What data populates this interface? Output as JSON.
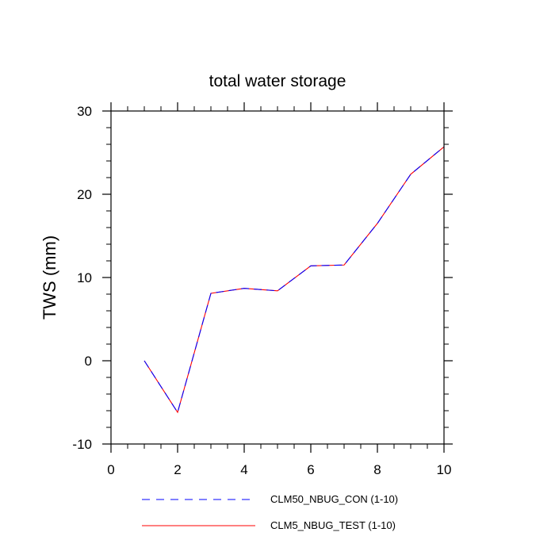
{
  "chart_data": {
    "type": "line",
    "title": "total water storage",
    "xlabel": "",
    "ylabel": "TWS  (mm)",
    "xlim": [
      0,
      10
    ],
    "ylim": [
      -10,
      30
    ],
    "x_ticks": [
      0,
      2,
      4,
      6,
      8,
      10
    ],
    "y_ticks": [
      -10,
      0,
      10,
      20,
      30
    ],
    "x_minor_step": 0.5,
    "y_minor_step": 2,
    "grid": false,
    "legend_position": "bottom",
    "x": [
      1,
      2,
      3,
      4,
      5,
      6,
      7,
      8,
      9,
      10
    ],
    "series": [
      {
        "name": "CLM50_NBUG_CON (1-10)",
        "values": [
          0.0,
          -6.2,
          8.1,
          8.7,
          8.4,
          11.4,
          11.5,
          16.5,
          22.4,
          25.7
        ],
        "color": "#0000ff",
        "dash": "dashed"
      },
      {
        "name": "CLM5_NBUG_TEST (1-10)",
        "values": [
          0.0,
          -6.2,
          8.1,
          8.7,
          8.4,
          11.4,
          11.5,
          16.5,
          22.4,
          25.7
        ],
        "color": "#ff0000",
        "dash": "solid"
      }
    ]
  }
}
